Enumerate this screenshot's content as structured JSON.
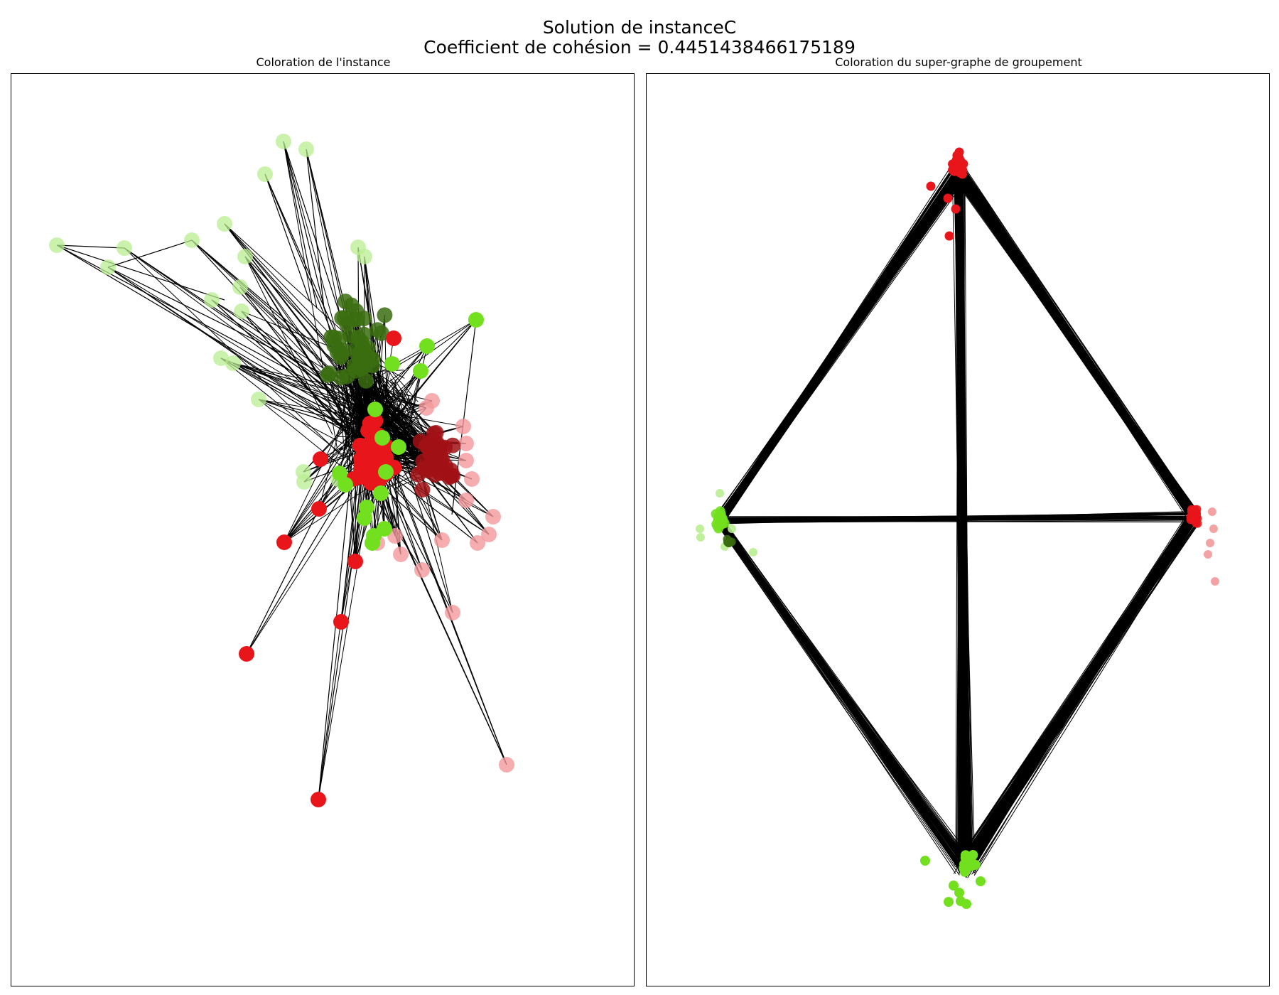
{
  "figure": {
    "title_line1": "Solution de instanceC",
    "title_line2": "Coefficient de cohésion = 0.4451438466175189"
  },
  "panels": {
    "left": {
      "title": "Coloration de l'instance"
    },
    "right": {
      "title": "Coloration du super-graphe de groupement"
    }
  },
  "colors": {
    "bright_green": "#72e01e",
    "pale_green": "#b9ee91",
    "dark_green": "#3b6d10",
    "bright_red": "#e8151b",
    "pale_red": "#f3999b",
    "dark_red": "#a11015",
    "edge": "#000000",
    "background": "#ffffff"
  }
}
